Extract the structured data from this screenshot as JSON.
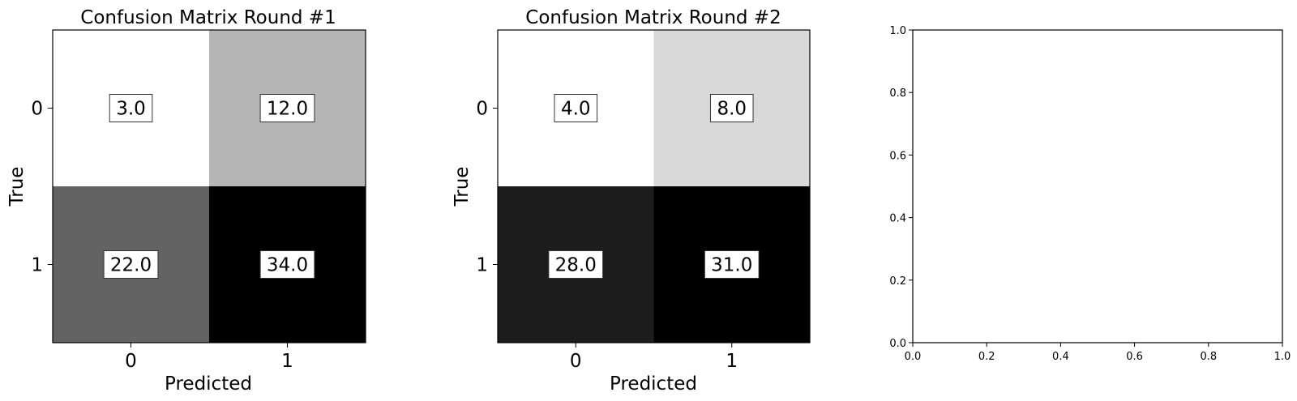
{
  "chart_data": [
    {
      "type": "heatmap",
      "title": "Confusion Matrix Round #1",
      "xlabel": "Predicted",
      "ylabel": "True",
      "x_ticks": [
        "0",
        "1"
      ],
      "y_ticks": [
        "0",
        "1"
      ],
      "values": [
        [
          3.0,
          12.0
        ],
        [
          22.0,
          34.0
        ]
      ],
      "value_labels": [
        [
          "3.0",
          "12.0"
        ],
        [
          "22.0",
          "34.0"
        ]
      ],
      "colormap": "gray_r"
    },
    {
      "type": "heatmap",
      "title": "Confusion Matrix Round #2",
      "xlabel": "Predicted",
      "ylabel": "True",
      "x_ticks": [
        "0",
        "1"
      ],
      "y_ticks": [
        "0",
        "1"
      ],
      "values": [
        [
          4.0,
          8.0
        ],
        [
          28.0,
          31.0
        ]
      ],
      "value_labels": [
        [
          "4.0",
          "8.0"
        ],
        [
          "28.0",
          "31.0"
        ]
      ],
      "colormap": "gray_r"
    },
    {
      "type": "line",
      "title": "",
      "xlabel": "",
      "ylabel": "",
      "xlim": [
        0.0,
        1.0
      ],
      "ylim": [
        0.0,
        1.0
      ],
      "x_ticks": [
        "0.0",
        "0.2",
        "0.4",
        "0.6",
        "0.8",
        "1.0"
      ],
      "y_ticks": [
        "0.0",
        "0.2",
        "0.4",
        "0.6",
        "0.8",
        "1.0"
      ],
      "series": []
    }
  ]
}
